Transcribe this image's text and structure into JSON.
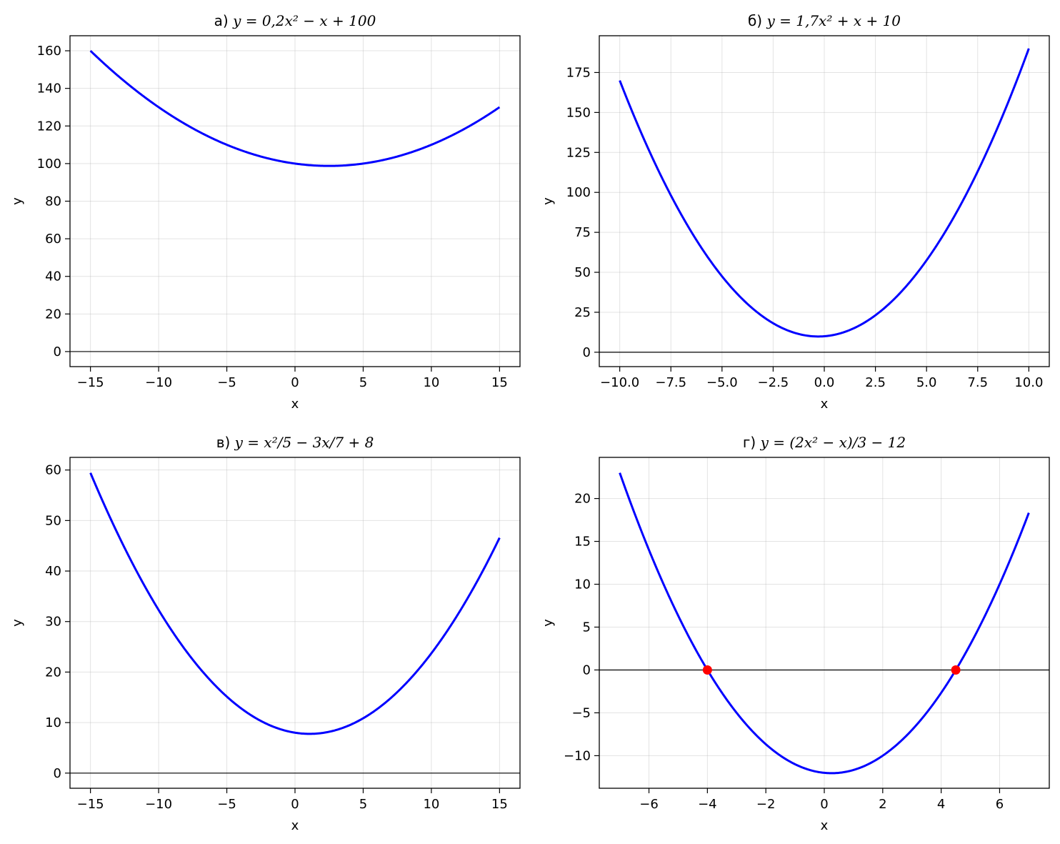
{
  "colors": {
    "curve": "#0000ff",
    "root_marker": "#ff0000",
    "zero_line": "#000000",
    "grid": "#b0b0b0"
  },
  "chart_data": [
    {
      "type": "line",
      "title": "а) y = 0,2x² − x + 100",
      "title_prefix": "а)",
      "title_formula": "y = 0,2x² − x + 100",
      "xlabel": "x",
      "ylabel": "y",
      "xlim": [
        -16.5,
        16.5
      ],
      "ylim": [
        -8,
        168
      ],
      "xticks": [
        -15,
        -10,
        -5,
        0,
        5,
        10,
        15
      ],
      "xtick_labels": [
        "−15",
        "−10",
        "−5",
        "0",
        "5",
        "10",
        "15"
      ],
      "yticks": [
        0,
        20,
        40,
        60,
        80,
        100,
        120,
        140,
        160
      ],
      "ytick_labels": [
        "0",
        "20",
        "40",
        "60",
        "80",
        "100",
        "120",
        "140",
        "160"
      ],
      "grid": true,
      "zero_line": true,
      "series": [
        {
          "coefficients": [
            0.2,
            -1,
            100
          ],
          "x_range": [
            -15,
            15
          ]
        }
      ],
      "points": []
    },
    {
      "type": "line",
      "title": "б) y = 1,7x² + x + 10",
      "title_prefix": "б)",
      "title_formula": "y = 1,7x² + x + 10",
      "xlabel": "x",
      "ylabel": "y",
      "xlim": [
        -11,
        11
      ],
      "ylim": [
        -9,
        198
      ],
      "xticks": [
        -10,
        -7.5,
        -5,
        -2.5,
        0,
        2.5,
        5,
        7.5,
        10
      ],
      "xtick_labels": [
        "−10.0",
        "−7.5",
        "−5.0",
        "−2.5",
        "0.0",
        "2.5",
        "5.0",
        "7.5",
        "10.0"
      ],
      "yticks": [
        0,
        25,
        50,
        75,
        100,
        125,
        150,
        175
      ],
      "ytick_labels": [
        "0",
        "25",
        "50",
        "75",
        "100",
        "125",
        "150",
        "175"
      ],
      "grid": true,
      "zero_line": true,
      "series": [
        {
          "coefficients": [
            1.7,
            1,
            10
          ],
          "x_range": [
            -10,
            10
          ]
        }
      ],
      "points": []
    },
    {
      "type": "line",
      "title": "в) y = x²/5 − 3x/7 + 8",
      "title_prefix": "в)",
      "title_formula": "y = x²/5 − 3x/7 + 8",
      "xlabel": "x",
      "ylabel": "y",
      "xlim": [
        -16.5,
        16.5
      ],
      "ylim": [
        -3,
        62.5
      ],
      "xticks": [
        -15,
        -10,
        -5,
        0,
        5,
        10,
        15
      ],
      "xtick_labels": [
        "−15",
        "−10",
        "−5",
        "0",
        "5",
        "10",
        "15"
      ],
      "yticks": [
        0,
        10,
        20,
        30,
        40,
        50,
        60
      ],
      "ytick_labels": [
        "0",
        "10",
        "20",
        "30",
        "40",
        "50",
        "60"
      ],
      "grid": true,
      "zero_line": true,
      "series": [
        {
          "coefficients": [
            0.2,
            -0.428571,
            8
          ],
          "x_range": [
            -15,
            15
          ]
        }
      ],
      "points": []
    },
    {
      "type": "line",
      "title": "г) y = (2x² − x)/3 − 12",
      "title_prefix": "г)",
      "title_formula": "y = (2x² − x)/3 − 12",
      "xlabel": "x",
      "ylabel": "y",
      "xlim": [
        -7.7,
        7.7
      ],
      "ylim": [
        -13.8,
        24.8
      ],
      "xticks": [
        -6,
        -4,
        -2,
        0,
        2,
        4,
        6
      ],
      "xtick_labels": [
        "−6",
        "−4",
        "−2",
        "0",
        "2",
        "4",
        "6"
      ],
      "yticks": [
        -10,
        -5,
        0,
        5,
        10,
        15,
        20
      ],
      "ytick_labels": [
        "−10",
        "−5",
        "0",
        "5",
        "10",
        "15",
        "20"
      ],
      "grid": true,
      "zero_line": true,
      "series": [
        {
          "coefficients": [
            0.666667,
            -0.333333,
            -12
          ],
          "x_range": [
            -7,
            7
          ]
        }
      ],
      "points": [
        {
          "x": -4,
          "y": 0
        },
        {
          "x": 4.5,
          "y": 0
        }
      ]
    }
  ]
}
